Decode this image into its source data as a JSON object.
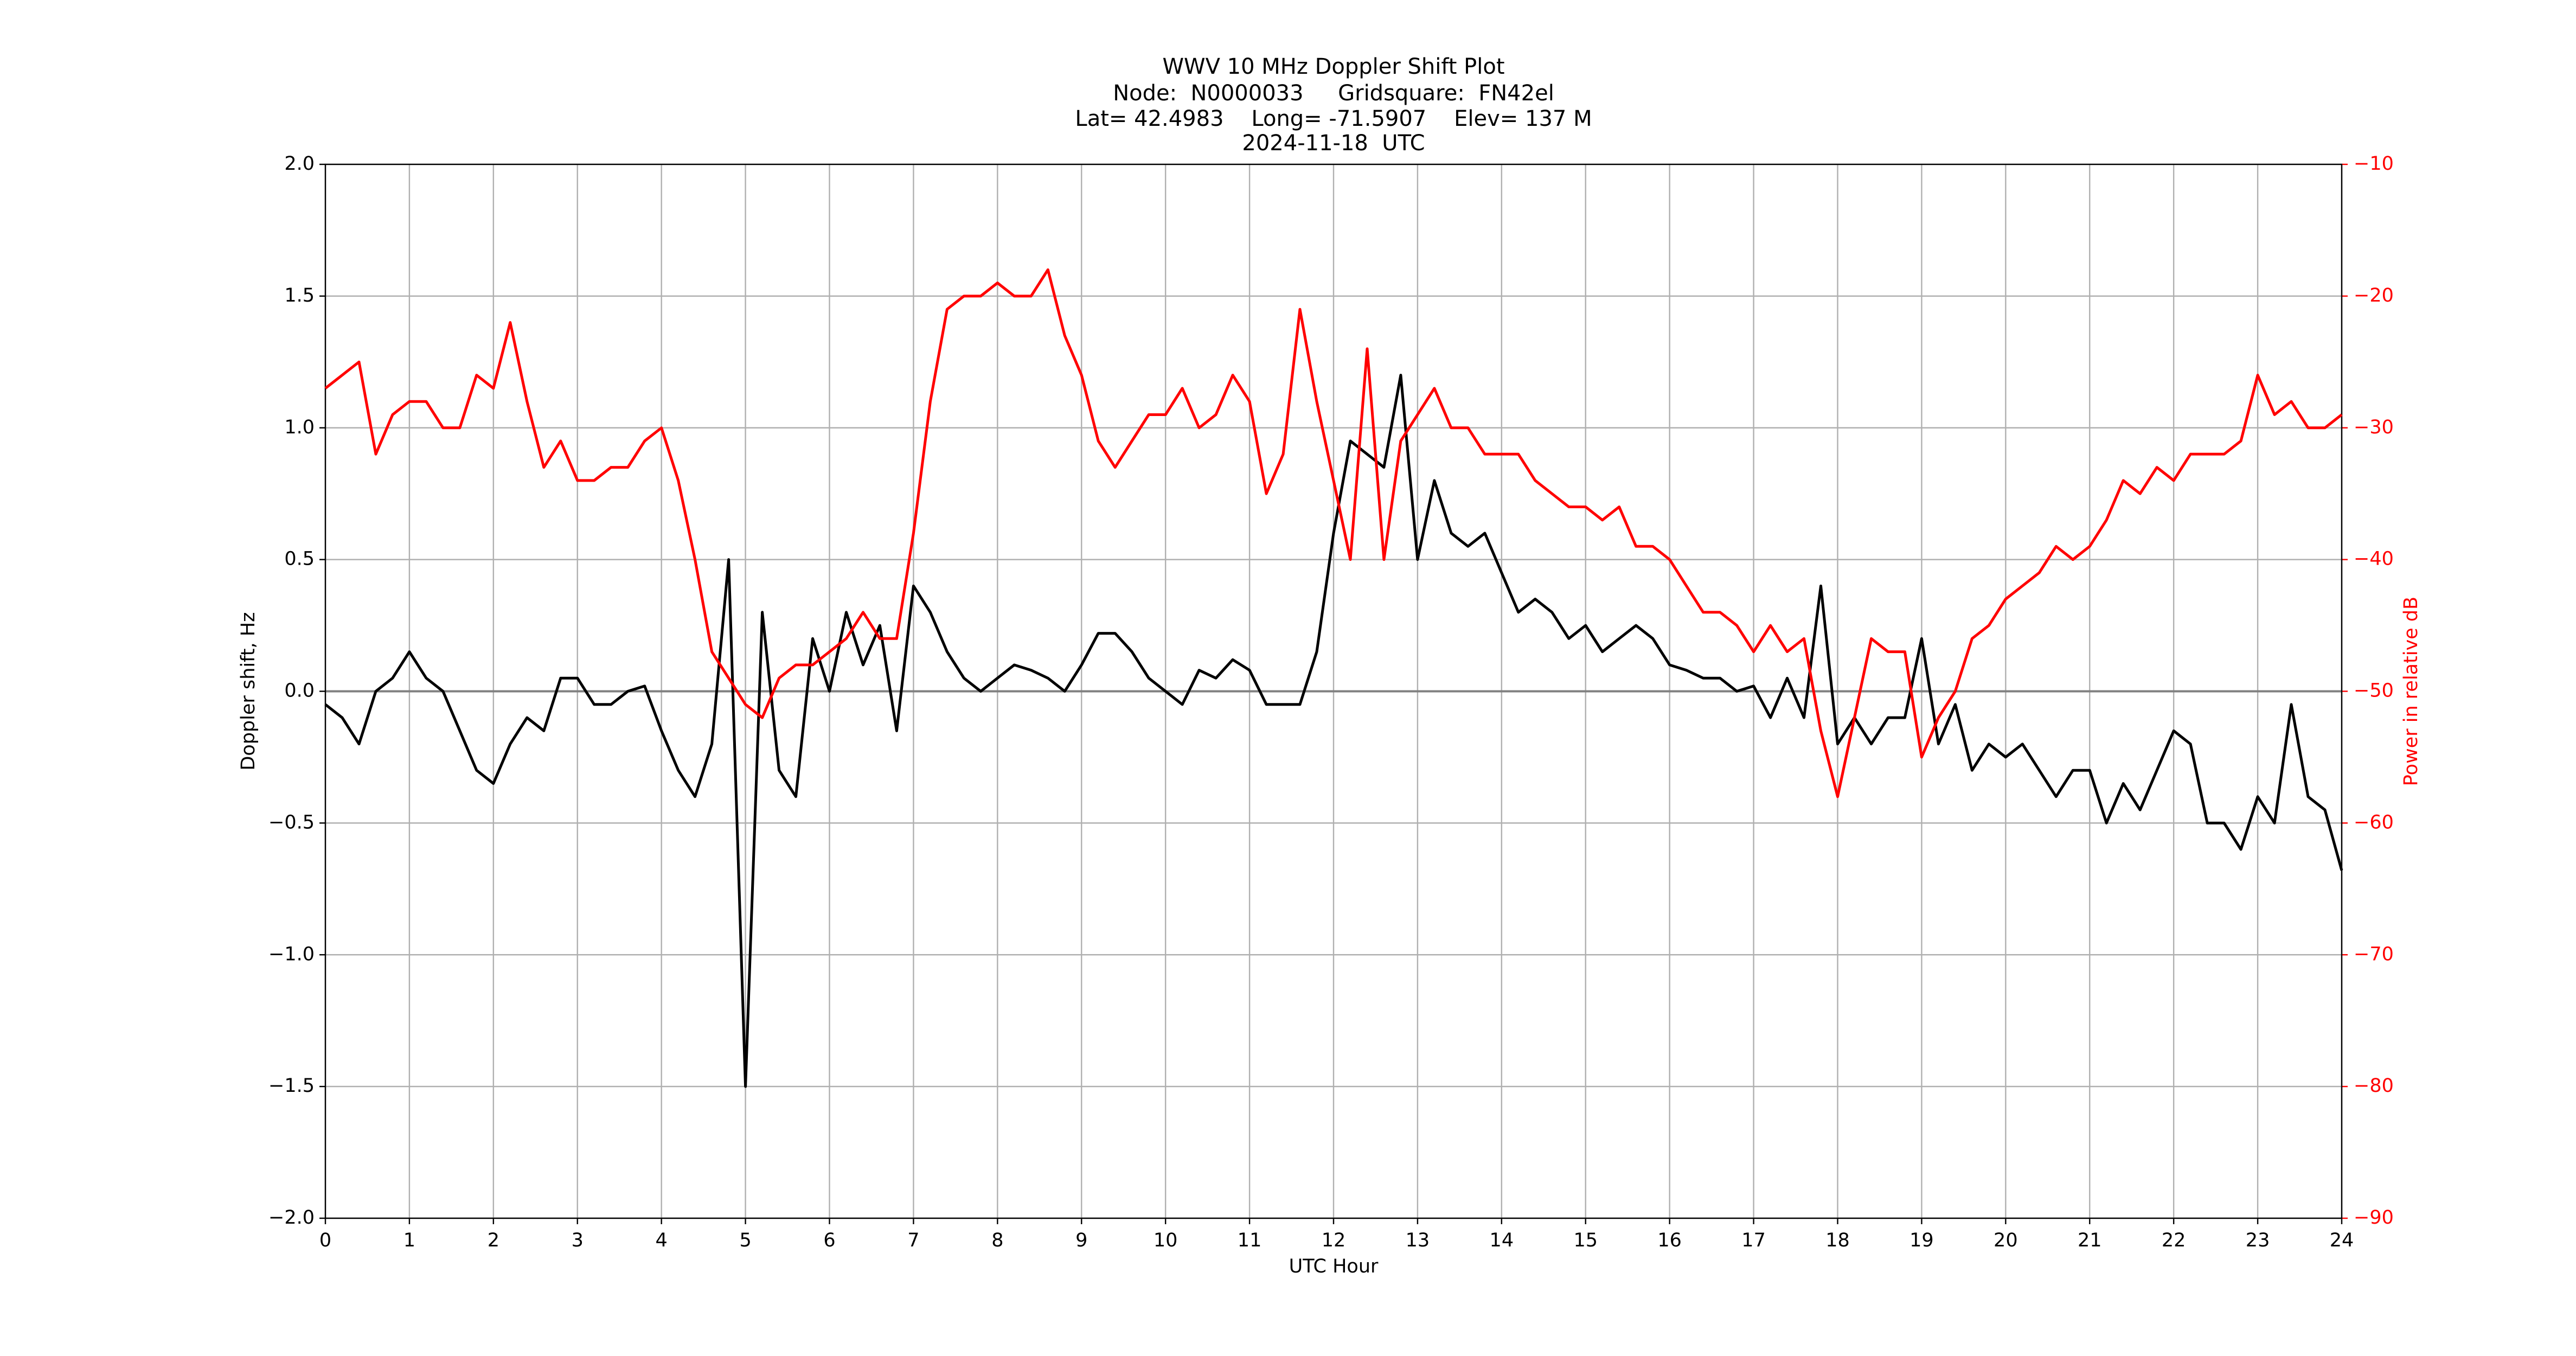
{
  "chart_data": {
    "type": "line",
    "title": [
      "WWV 10 MHz Doppler Shift Plot",
      "Node:  N0000033     Gridsquare:  FN42el",
      "Lat= 42.4983    Long= -71.5907    Elev= 137 M",
      "2024-11-18  UTC"
    ],
    "x_label": "UTC Hour",
    "y_label": "Doppler shift, Hz",
    "y2_label": "Power in relative dB",
    "x": [
      0,
      0.2,
      0.4,
      0.6,
      0.8,
      1,
      1.2,
      1.4,
      1.6,
      1.8,
      2,
      2.2,
      2.4,
      2.6,
      2.8,
      3,
      3.2,
      3.4,
      3.6,
      3.8,
      4,
      4.2,
      4.4,
      4.6,
      4.8,
      5,
      5.2,
      5.4,
      5.6,
      5.8,
      6,
      6.2,
      6.4,
      6.6,
      6.8,
      7,
      7.2,
      7.4,
      7.6,
      7.8,
      8,
      8.2,
      8.4,
      8.6,
      8.8,
      9,
      9.2,
      9.4,
      9.6,
      9.8,
      10,
      10.2,
      10.4,
      10.6,
      10.8,
      11,
      11.2,
      11.4,
      11.6,
      11.8,
      12,
      12.2,
      12.4,
      12.6,
      12.8,
      13,
      13.2,
      13.4,
      13.6,
      13.8,
      14,
      14.2,
      14.4,
      14.6,
      14.8,
      15,
      15.2,
      15.4,
      15.6,
      15.8,
      16,
      16.2,
      16.4,
      16.6,
      16.8,
      17,
      17.2,
      17.4,
      17.6,
      17.8,
      18,
      18.2,
      18.4,
      18.6,
      18.8,
      19,
      19.2,
      19.4,
      19.6,
      19.8,
      20,
      20.2,
      20.4,
      20.6,
      20.8,
      21,
      21.2,
      21.4,
      21.6,
      21.8,
      22,
      22.2,
      22.4,
      22.6,
      22.8,
      23,
      23.2,
      23.4,
      23.6,
      23.8,
      24
    ],
    "series": [
      {
        "color": "#000000",
        "axis": "y",
        "values": [
          -0.05,
          -0.1,
          -0.2,
          0.0,
          0.05,
          0.15,
          0.05,
          0.0,
          -0.15,
          -0.3,
          -0.35,
          -0.2,
          -0.1,
          -0.15,
          0.05,
          0.05,
          -0.05,
          -0.05,
          0.0,
          0.02,
          -0.15,
          -0.3,
          -0.4,
          -0.2,
          0.5,
          -1.5,
          0.3,
          -0.3,
          -0.4,
          0.2,
          0.0,
          0.3,
          0.1,
          0.25,
          -0.15,
          0.4,
          0.3,
          0.15,
          0.05,
          0.0,
          0.05,
          0.1,
          0.08,
          0.05,
          0.0,
          0.1,
          0.22,
          0.22,
          0.15,
          0.05,
          0.0,
          -0.05,
          0.08,
          0.05,
          0.12,
          0.08,
          -0.05,
          -0.05,
          -0.05,
          0.15,
          0.6,
          0.95,
          0.9,
          0.85,
          1.2,
          0.5,
          0.8,
          0.6,
          0.55,
          0.6,
          0.45,
          0.3,
          0.35,
          0.3,
          0.2,
          0.25,
          0.15,
          0.2,
          0.25,
          0.2,
          0.1,
          0.08,
          0.05,
          0.05,
          0.0,
          0.02,
          -0.1,
          0.05,
          -0.1,
          0.4,
          -0.2,
          -0.1,
          -0.2,
          -0.1,
          -0.1,
          0.2,
          -0.2,
          -0.05,
          -0.3,
          -0.2,
          -0.25,
          -0.2,
          -0.3,
          -0.4,
          -0.3,
          -0.3,
          -0.5,
          -0.35,
          -0.45,
          -0.3,
          -0.15,
          -0.2,
          -0.5,
          -0.5,
          -0.6,
          -0.4,
          -0.5,
          -0.05,
          -0.4,
          -0.45,
          -0.68
        ]
      },
      {
        "color": "#ff0000",
        "axis": "y2",
        "values": [
          -27,
          -26,
          -25,
          -32,
          -29,
          -28,
          -28,
          -30,
          -30,
          -26,
          -27,
          -22,
          -28,
          -33,
          -31,
          -34,
          -34,
          -33,
          -33,
          -31,
          -30,
          -34,
          -40,
          -47,
          -49,
          -51,
          -52,
          -49,
          -48,
          -48,
          -47,
          -46,
          -44,
          -46,
          -46,
          -38,
          -28,
          -21,
          -20,
          -20,
          -19,
          -20,
          -20,
          -18,
          -23,
          -26,
          -31,
          -33,
          -31,
          -29,
          -29,
          -27,
          -30,
          -29,
          -26,
          -28,
          -35,
          -32,
          -21,
          -28,
          -34,
          -40,
          -24,
          -40,
          -31,
          -29,
          -27,
          -30,
          -30,
          -32,
          -32,
          -32,
          -34,
          -35,
          -36,
          -36,
          -37,
          -36,
          -39,
          -39,
          -40,
          -42,
          -44,
          -44,
          -45,
          -47,
          -45,
          -47,
          -46,
          -53,
          -58,
          -52,
          -46,
          -47,
          -47,
          -55,
          -52,
          -50,
          -46,
          -45,
          -43,
          -42,
          -41,
          -39,
          -40,
          -39,
          -37,
          -34,
          -35,
          -33,
          -34,
          -32,
          -32,
          -32,
          -31,
          -26,
          -29,
          -28,
          -30,
          -30,
          -29
        ]
      }
    ],
    "xlim": [
      0,
      24
    ],
    "xticks": [
      0,
      1,
      2,
      3,
      4,
      5,
      6,
      7,
      8,
      9,
      10,
      11,
      12,
      13,
      14,
      15,
      16,
      17,
      18,
      19,
      20,
      21,
      22,
      23,
      24
    ],
    "ylim": [
      -2,
      2
    ],
    "yticks": [
      {
        "value": -2,
        "label": "−2.0"
      },
      {
        "value": -1.5,
        "label": "−1.5"
      },
      {
        "value": -1,
        "label": "−1.0"
      },
      {
        "value": -0.5,
        "label": "−0.5"
      },
      {
        "value": 0,
        "label": "0.0"
      },
      {
        "value": 0.5,
        "label": "0.5"
      },
      {
        "value": 1,
        "label": "1.0"
      },
      {
        "value": 1.5,
        "label": "1.5"
      },
      {
        "value": 2,
        "label": "2.0"
      }
    ],
    "y2lim": [
      -90,
      -10
    ],
    "y2ticks": [
      {
        "value": -90,
        "label": "−90"
      },
      {
        "value": -80,
        "label": "−80"
      },
      {
        "value": -70,
        "label": "−70"
      },
      {
        "value": -60,
        "label": "−60"
      },
      {
        "value": -50,
        "label": "−50"
      },
      {
        "value": -40,
        "label": "−40"
      },
      {
        "value": -30,
        "label": "−30"
      },
      {
        "value": -20,
        "label": "−20"
      },
      {
        "value": -10,
        "label": "−10"
      }
    ],
    "y2_color": "#ff0000",
    "grid": true,
    "reference_line": 0
  }
}
